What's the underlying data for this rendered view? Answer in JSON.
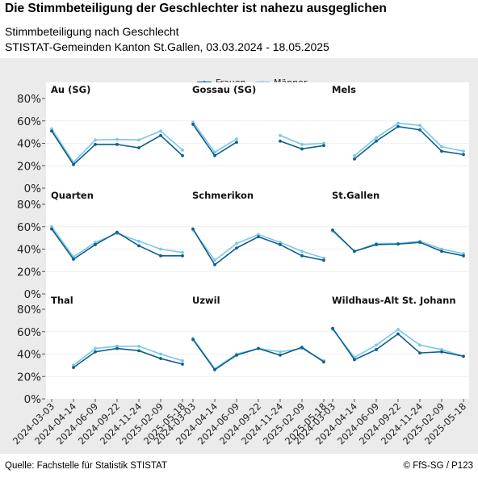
{
  "header": {
    "title": "Die Stimmbeteiligung der Geschlechter ist nahezu ausgeglichen",
    "subtitle": "Stimmbeteiligung nach Geschlecht",
    "subtitle2": "STISTAT-Gemeinden Kanton St.Gallen, 03.03.2024 - 18.05.2025"
  },
  "footer": {
    "source": "Quelle: Fachstelle für Statistik STISTAT",
    "credit": "© FfS-SG / P123"
  },
  "colors": {
    "frauen": "#0f5f8a",
    "maenner": "#79c8ea",
    "panel_bg": "#ffffff",
    "chart_bg": "#ebebeb",
    "grid": "#ebebeb"
  },
  "chart_data": {
    "type": "line",
    "facets": true,
    "legend": {
      "position": "top-center",
      "entries": [
        "Frauen",
        "Männer"
      ]
    },
    "x": [
      "2024-03-03",
      "2024-04-14",
      "2024-06-09",
      "2024-09-22",
      "2024-11-24",
      "2025-02-09",
      "2025-05-18"
    ],
    "y_ticks": [
      "0%",
      "20%",
      "40%",
      "60%",
      "80%"
    ],
    "ylim": [
      0,
      80
    ],
    "panels": [
      {
        "name": "Au (SG)",
        "series": [
          {
            "name": "Frauen",
            "values": [
              51,
              21,
              39,
              39,
              36,
              47,
              29
            ]
          },
          {
            "name": "Männer",
            "values": [
              53,
              23,
              43,
              43.5,
              43,
              51,
              34
            ]
          }
        ]
      },
      {
        "name": "Gossau (SG)",
        "series": [
          {
            "name": "Frauen",
            "values": [
              57,
              29,
              41,
              null,
              42,
              35,
              38
            ]
          },
          {
            "name": "Männer",
            "values": [
              59,
              32,
              44,
              null,
              47,
              39,
              40
            ]
          }
        ]
      },
      {
        "name": "Mels",
        "series": [
          {
            "name": "Frauen",
            "values": [
              null,
              26,
              42,
              55,
              52,
              33,
              30
            ]
          },
          {
            "name": "Männer",
            "values": [
              null,
              29,
              45,
              58,
              56,
              37,
              33
            ]
          }
        ]
      },
      {
        "name": "Quarten",
        "series": [
          {
            "name": "Frauen",
            "values": [
              58,
              31,
              44,
              55,
              43,
              34,
              34
            ]
          },
          {
            "name": "Männer",
            "values": [
              60,
              33,
              46,
              54,
              47,
              40,
              37
            ]
          }
        ]
      },
      {
        "name": "Schmerikon",
        "series": [
          {
            "name": "Frauen",
            "values": [
              58,
              26,
              41,
              51,
              44,
              34,
              30
            ]
          },
          {
            "name": "Männer",
            "values": [
              57,
              30,
              45,
              53,
              46,
              38,
              32
            ]
          }
        ]
      },
      {
        "name": "St.Gallen",
        "series": [
          {
            "name": "Frauen",
            "values": [
              57,
              38,
              44,
              44.5,
              46,
              38,
              34
            ]
          },
          {
            "name": "Männer",
            "values": [
              56,
              38,
              45,
              45,
              47,
              40,
              36
            ]
          }
        ]
      },
      {
        "name": "Thal",
        "series": [
          {
            "name": "Frauen",
            "values": [
              null,
              28,
              42,
              45,
              43,
              36,
              31
            ]
          },
          {
            "name": "Männer",
            "values": [
              null,
              30,
              45,
              47,
              47,
              40,
              34
            ]
          }
        ]
      },
      {
        "name": "Uzwil",
        "series": [
          {
            "name": "Frauen",
            "values": [
              53,
              26,
              39,
              45,
              39,
              46,
              33
            ]
          },
          {
            "name": "Männer",
            "values": [
              54,
              27,
              40,
              45,
              42,
              45,
              34
            ]
          }
        ]
      },
      {
        "name": "Wildhaus-Alt St. Johann",
        "series": [
          {
            "name": "Frauen",
            "values": [
              63,
              35,
              44,
              58,
              41,
              42,
              38
            ]
          },
          {
            "name": "Männer",
            "values": [
              62,
              37,
              48,
              62,
              48,
              44,
              38
            ]
          }
        ]
      }
    ]
  }
}
